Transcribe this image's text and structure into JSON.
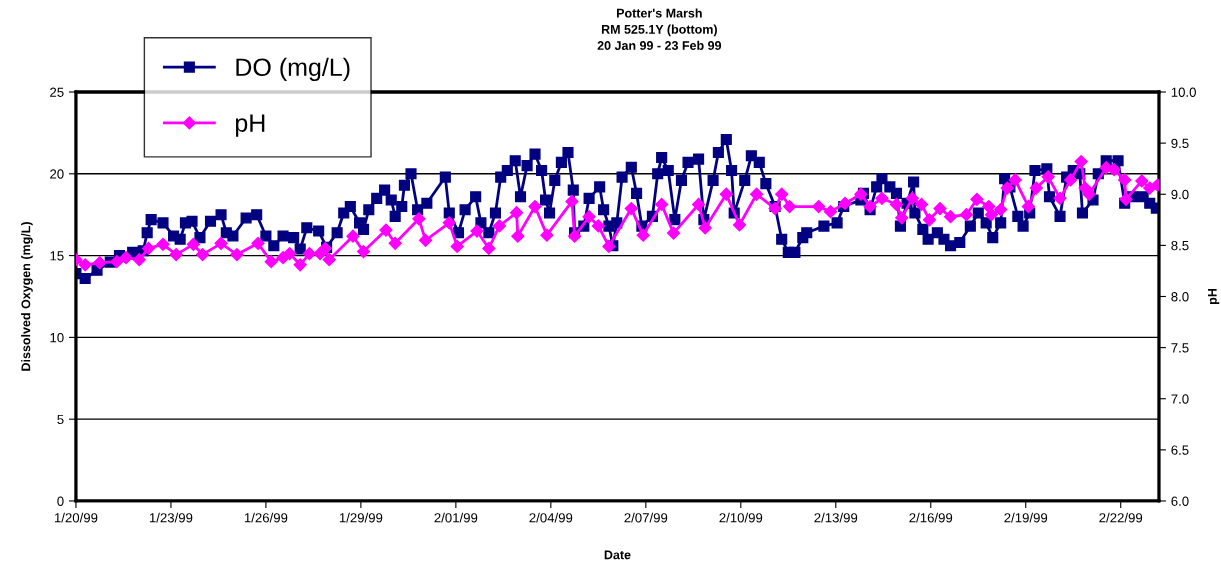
{
  "chart_data": {
    "type": "line",
    "title": "Potter's Marsh\nRM 525.1Y (bottom)\n20 Jan 99 - 23 Feb 99",
    "xlabel": "Date",
    "ylabel": "Dissolved Oxygen (mg/L)",
    "y2label": "pH",
    "xlim": [
      "1999-01-20",
      "1999-02-23T05:00"
    ],
    "xticks": [
      {
        "value": "1999-01-20",
        "label": "1/20/99"
      },
      {
        "value": "1999-01-23",
        "label": "1/23/99"
      },
      {
        "value": "1999-01-26",
        "label": "1/26/99"
      },
      {
        "value": "1999-01-29",
        "label": "1/29/99"
      },
      {
        "value": "1999-02-01",
        "label": "2/01/99"
      },
      {
        "value": "1999-02-04",
        "label": "2/04/99"
      },
      {
        "value": "1999-02-07",
        "label": "2/07/99"
      },
      {
        "value": "1999-02-10",
        "label": "2/10/99"
      },
      {
        "value": "1999-02-13",
        "label": "2/13/99"
      },
      {
        "value": "1999-02-16",
        "label": "2/16/99"
      },
      {
        "value": "1999-02-19",
        "label": "2/19/99"
      },
      {
        "value": "1999-02-22",
        "label": "2/22/99"
      }
    ],
    "ylim": [
      0,
      25
    ],
    "yticks": [
      0,
      5,
      10,
      15,
      20,
      25
    ],
    "y2lim": [
      6.0,
      10.0
    ],
    "y2ticks": [
      {
        "value": 6,
        "label": "6.0"
      },
      {
        "value": 6.5,
        "label": "6.5"
      },
      {
        "value": 7,
        "label": "7.0"
      },
      {
        "value": 7.5,
        "label": "7.5"
      },
      {
        "value": 8,
        "label": "8.0"
      },
      {
        "value": 8.5,
        "label": "8.5"
      },
      {
        "value": 9,
        "label": "9.0"
      },
      {
        "value": 9.5,
        "label": "9.5"
      },
      {
        "value": 10,
        "label": "10.0"
      }
    ],
    "grid": "y",
    "legend": "top left",
    "series": [
      {
        "name": "DO (mg/L)",
        "color": "#000080",
        "marker": "square",
        "x": [
          "1999-01-20T00:00",
          "1999-01-20T07:00",
          "1999-01-20T16:00",
          "1999-01-21T02:00",
          "1999-01-21T09:00",
          "1999-01-21T19:00",
          "1999-01-22T03:00",
          "1999-01-22T06:00",
          "1999-01-22T09:00",
          "1999-01-22T18:00",
          "1999-01-23T02:00",
          "1999-01-23T07:00",
          "1999-01-23T11:00",
          "1999-01-23T16:00",
          "1999-01-23T22:00",
          "1999-01-24T06:00",
          "1999-01-24T14:00",
          "1999-01-24T18:00",
          "1999-01-24T23:00",
          "1999-01-25T09:00",
          "1999-01-25T17:00",
          "1999-01-26T00:00",
          "1999-01-26T06:00",
          "1999-01-26T13:00",
          "1999-01-26T21:00",
          "1999-01-27T02:00",
          "1999-01-27T07:00",
          "1999-01-27T16:00",
          "1999-01-27T22:00",
          "1999-01-28T06:00",
          "1999-01-28T11:00",
          "1999-01-28T16:00",
          "1999-01-28T23:00",
          "1999-01-29T02:00",
          "1999-01-29T06:00",
          "1999-01-29T12:00",
          "1999-01-29T18:00",
          "1999-01-29T23:00",
          "1999-01-30T02:00",
          "1999-01-30T07:00",
          "1999-01-30T09:00",
          "1999-01-30T14:00",
          "1999-01-30T19:00",
          "1999-01-31T02:00",
          "1999-01-31T16:00",
          "1999-01-31T19:00",
          "1999-02-01T02:00",
          "1999-02-01T07:00",
          "1999-02-01T15:00",
          "1999-02-01T19:00",
          "1999-02-02T01:00",
          "1999-02-02T06:00",
          "1999-02-02T10:00",
          "1999-02-02T15:00",
          "1999-02-02T21:00",
          "1999-02-03T01:00",
          "1999-02-03T06:00",
          "1999-02-03T12:00",
          "1999-02-03T17:00",
          "1999-02-03T20:00",
          "1999-02-03T23:00",
          "1999-02-04T03:00",
          "1999-02-04T08:00",
          "1999-02-04T13:00",
          "1999-02-04T17:00",
          "1999-02-04T18:00",
          "1999-02-05T01:00",
          "1999-02-05T05:00",
          "1999-02-05T13:00",
          "1999-02-05T16:00",
          "1999-02-05T20:00",
          "1999-02-05T23:00",
          "1999-02-06T02:00",
          "1999-02-06T06:00",
          "1999-02-06T13:00",
          "1999-02-06T17:00",
          "1999-02-06T21:00",
          "1999-02-07T05:00",
          "1999-02-07T09:00",
          "1999-02-07T12:00",
          "1999-02-07T17:00",
          "1999-02-07T22:00",
          "1999-02-08T03:00",
          "1999-02-08T08:00",
          "1999-02-08T16:00",
          "1999-02-08T20:00",
          "1999-02-09T03:00",
          "1999-02-09T07:00",
          "1999-02-09T13:00",
          "1999-02-09T17:00",
          "1999-02-09T19:00",
          "1999-02-10T03:00",
          "1999-02-10T08:00",
          "1999-02-10T14:00",
          "1999-02-10T19:00",
          "1999-02-11T02:00",
          "1999-02-11T07:00",
          "1999-02-11T12:00",
          "1999-02-11T17:00",
          "1999-02-11T23:00",
          "1999-02-12T02:00",
          "1999-02-12T15:00",
          "1999-02-13T01:00",
          "1999-02-13T06:00",
          "1999-02-13T19:00",
          "1999-02-13T21:00",
          "1999-02-14T02:00",
          "1999-02-14T07:00",
          "1999-02-14T11:00",
          "1999-02-14T17:00",
          "1999-02-14T22:00",
          "1999-02-15T01:00",
          "1999-02-15T06:00",
          "1999-02-15T11:00",
          "1999-02-15T12:00",
          "1999-02-15T18:00",
          "1999-02-15T22:00",
          "1999-02-16T05:00",
          "1999-02-16T10:00",
          "1999-02-16T15:00",
          "1999-02-16T22:00",
          "1999-02-17T06:00",
          "1999-02-17T12:00",
          "1999-02-17T18:00",
          "1999-02-17T23:00",
          "1999-02-18T05:00",
          "1999-02-18T08:00",
          "1999-02-18T12:00",
          "1999-02-18T18:00",
          "1999-02-18T22:00",
          "1999-02-19T03:00",
          "1999-02-19T07:00",
          "1999-02-19T16:00",
          "1999-02-19T18:00",
          "1999-02-20T02:00",
          "1999-02-20T07:00",
          "1999-02-20T12:00",
          "1999-02-20T17:00",
          "1999-02-20T19:00",
          "1999-02-21T03:00",
          "1999-02-21T07:00",
          "1999-02-21T13:00",
          "1999-02-21T22:00",
          "1999-02-22T03:00",
          "1999-02-22T09:00",
          "1999-02-22T17:00",
          "1999-02-22T22:00",
          "1999-02-23T03:00"
        ],
        "values": [
          13.9,
          13.6,
          14.1,
          14.6,
          15.0,
          15.2,
          15.3,
          16.4,
          17.2,
          17.0,
          16.2,
          16.0,
          17.0,
          17.1,
          16.1,
          17.1,
          17.5,
          16.4,
          16.2,
          17.3,
          17.5,
          16.2,
          15.6,
          16.2,
          16.1,
          15.4,
          16.7,
          16.5,
          15.5,
          16.4,
          17.6,
          18.0,
          17.0,
          16.6,
          17.8,
          18.5,
          19.0,
          18.4,
          17.4,
          18.0,
          19.3,
          20.0,
          17.8,
          18.2,
          19.8,
          17.6,
          16.4,
          17.8,
          18.6,
          17.0,
          16.4,
          17.6,
          19.8,
          20.2,
          20.8,
          18.6,
          20.5,
          21.2,
          20.2,
          18.4,
          17.6,
          19.6,
          20.7,
          21.3,
          19.0,
          16.4,
          16.8,
          18.5,
          19.2,
          17.8,
          16.8,
          15.6,
          17.0,
          19.8,
          20.4,
          18.8,
          16.8,
          17.4,
          20.0,
          21.0,
          20.2,
          17.2,
          19.6,
          20.7,
          20.9,
          17.2,
          19.6,
          21.3,
          22.1,
          20.2,
          17.6,
          19.6,
          21.1,
          20.7,
          19.4,
          18.0,
          16.0,
          15.2,
          15.2,
          16.1,
          16.4,
          16.8,
          17.0,
          18.0,
          18.4,
          18.8,
          17.8,
          19.2,
          19.7,
          19.2,
          18.8,
          16.8,
          18.2,
          19.5,
          17.6,
          16.6,
          16.0,
          16.4,
          16.0,
          15.6,
          15.8,
          16.8,
          17.6,
          17.0,
          16.1,
          17.0,
          19.7,
          19.2,
          17.4,
          16.8,
          17.6,
          20.2,
          20.3,
          18.6,
          17.4,
          19.8,
          20.2,
          20.0,
          17.6,
          18.4,
          20.0,
          20.8,
          20.8,
          18.2,
          18.6,
          18.6,
          18.2,
          17.9
        ]
      },
      {
        "name": "pH",
        "color": "#ff00ff",
        "marker": "diamond",
        "axis": "y2",
        "x": [
          "1999-01-20T00:00",
          "1999-01-20T07:00",
          "1999-01-20T18:00",
          "1999-01-21T07:00",
          "1999-01-21T14:00",
          "1999-01-22T00:00",
          "1999-01-22T07:00",
          "1999-01-22T18:00",
          "1999-01-23T04:00",
          "1999-01-23T17:00",
          "1999-01-24T00:00",
          "1999-01-24T14:00",
          "1999-01-25T02:00",
          "1999-01-25T18:00",
          "1999-01-26T04:00",
          "1999-01-26T13:00",
          "1999-01-26T18:00",
          "1999-01-27T02:00",
          "1999-01-27T09:00",
          "1999-01-27T17:00",
          "1999-01-27T21:00",
          "1999-01-28T00:00",
          "1999-01-28T18:00",
          "1999-01-29T02:00",
          "1999-01-29T19:00",
          "1999-01-30T02:00",
          "1999-01-30T20:00",
          "1999-01-31T01:00",
          "1999-01-31T19:00",
          "1999-02-01T01:00",
          "1999-02-01T16:00",
          "1999-02-02T01:00",
          "1999-02-02T09:00",
          "1999-02-02T22:00",
          "1999-02-02T23:00",
          "1999-02-03T12:00",
          "1999-02-03T21:00",
          "1999-02-04T16:00",
          "1999-02-04T18:00",
          "1999-02-05T05:00",
          "1999-02-05T12:00",
          "1999-02-05T20:00",
          "1999-02-06T13:00",
          "1999-02-06T22:00",
          "1999-02-07T12:00",
          "1999-02-07T21:00",
          "1999-02-08T16:00",
          "1999-02-08T21:00",
          "1999-02-09T13:00",
          "1999-02-09T23:00",
          "1999-02-10T12:00",
          "1999-02-11T02:00",
          "1999-02-11T07:00",
          "1999-02-11T13:00",
          "1999-02-12T11:00",
          "1999-02-12T20:00",
          "1999-02-13T07:00",
          "1999-02-13T19:00",
          "1999-02-14T02:00",
          "1999-02-14T11:00",
          "1999-02-14T22:00",
          "1999-02-15T02:00",
          "1999-02-15T10:00",
          "1999-02-15T17:00",
          "1999-02-15T23:00",
          "1999-02-16T07:00",
          "1999-02-16T15:00",
          "1999-02-17T03:00",
          "1999-02-17T11:00",
          "1999-02-17T20:00",
          "1999-02-17T22:00",
          "1999-02-18T05:00",
          "1999-02-18T10:00",
          "1999-02-18T16:00",
          "1999-02-19T02:00",
          "1999-02-19T08:00",
          "1999-02-19T17:00",
          "1999-02-20T02:00",
          "1999-02-20T10:00",
          "1999-02-20T18:00",
          "1999-02-20T21:00",
          "1999-02-21T00:00",
          "1999-02-21T13:00",
          "1999-02-21T19:00",
          "1999-02-22T03:00",
          "1999-02-22T04:00",
          "1999-02-22T16:00",
          "1999-02-22T22:00",
          "1999-02-23T04:00"
        ],
        "values": [
          8.36,
          8.31,
          8.33,
          8.34,
          8.38,
          8.36,
          8.47,
          8.51,
          8.41,
          8.51,
          8.41,
          8.52,
          8.41,
          8.52,
          8.34,
          8.38,
          8.42,
          8.31,
          8.42,
          8.42,
          8.47,
          8.36,
          8.59,
          8.44,
          8.65,
          8.52,
          8.76,
          8.55,
          8.72,
          8.49,
          8.64,
          8.47,
          8.69,
          8.82,
          8.59,
          8.88,
          8.6,
          8.93,
          8.59,
          8.78,
          8.69,
          8.49,
          8.86,
          8.6,
          8.9,
          8.62,
          8.9,
          8.67,
          9.0,
          8.7,
          9.0,
          8.86,
          9.0,
          8.88,
          8.88,
          8.83,
          8.91,
          9.0,
          8.88,
          8.96,
          8.9,
          8.77,
          8.96,
          8.9,
          8.75,
          8.86,
          8.78,
          8.8,
          8.95,
          8.88,
          8.8,
          8.85,
          9.06,
          9.14,
          8.88,
          9.06,
          9.17,
          8.96,
          9.14,
          9.32,
          9.06,
          9.0,
          9.26,
          9.24,
          9.14,
          8.95,
          9.13,
          9.06,
          9.09
        ]
      }
    ]
  }
}
